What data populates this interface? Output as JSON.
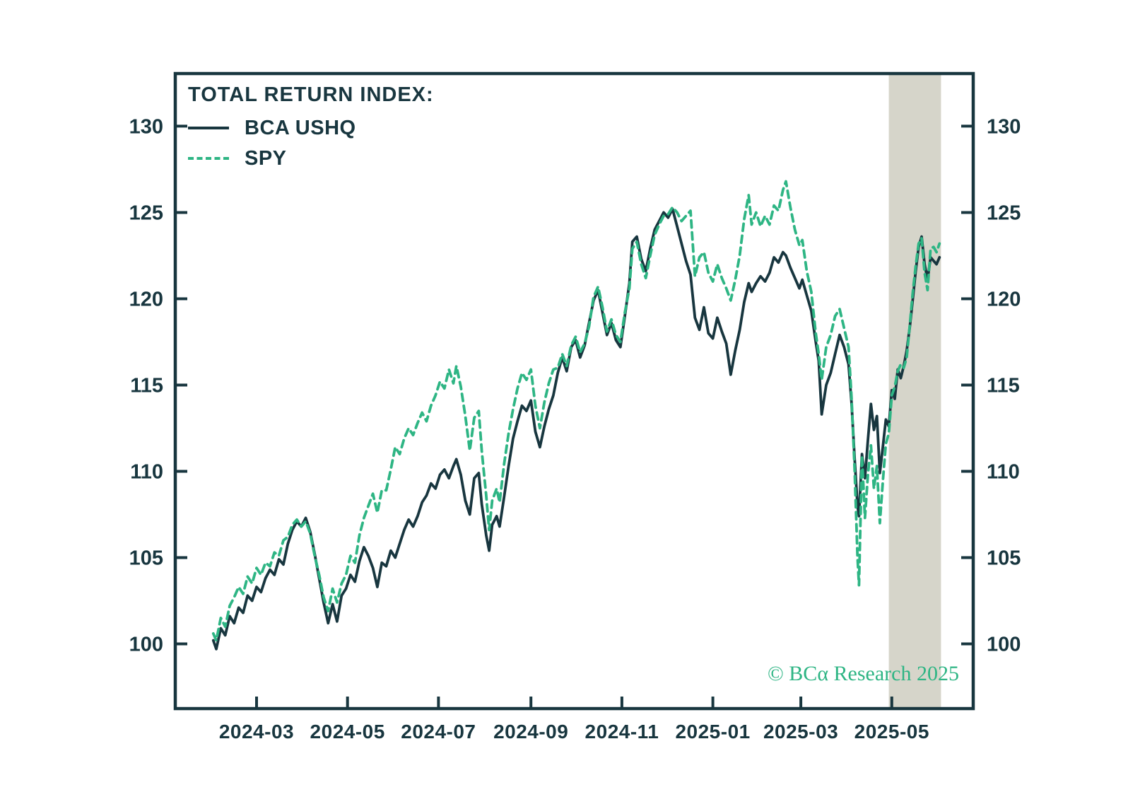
{
  "figure": {
    "copyright": "© BCα Research 2025"
  },
  "colors": {
    "dark": "#18363F",
    "green": "#2EB584",
    "band": "#D6D5CA",
    "background": "#FFFFFF"
  },
  "chart_data": {
    "type": "line",
    "title": "TOTAL RETURN INDEX:",
    "grid": false,
    "legend_position": "top-left",
    "x_axis": {
      "unit": "days since 2024-02-01",
      "tick_labels": [
        "2024-03",
        "2024-05",
        "2024-07",
        "2024-09",
        "2024-11",
        "2025-01",
        "2025-03",
        "2025-05"
      ],
      "tick_days": [
        29,
        90,
        151,
        213,
        274,
        335,
        394,
        455
      ]
    },
    "y_axis": {
      "ticks": [
        100,
        105,
        110,
        115,
        120,
        125,
        130
      ],
      "sides": "both",
      "value_at_top_border": 133.05,
      "value_at_bottom_border": 96.25
    },
    "highlight_band_days": [
      453,
      488
    ],
    "x_days": [
      0,
      2,
      5,
      8,
      11,
      14,
      17,
      20,
      23,
      26,
      29,
      32,
      35,
      38,
      41,
      44,
      47,
      50,
      53,
      56,
      59,
      62,
      65,
      68,
      71,
      74,
      77,
      80,
      83,
      86,
      89,
      92,
      95,
      98,
      101,
      104,
      107,
      110,
      113,
      116,
      119,
      122,
      125,
      128,
      131,
      134,
      137,
      140,
      143,
      146,
      149,
      152,
      155,
      158,
      161,
      163,
      166,
      169,
      172,
      175,
      178,
      180,
      183,
      185,
      187,
      190,
      192,
      195,
      198,
      201,
      204,
      207,
      210,
      213,
      216,
      219,
      222,
      225,
      228,
      231,
      234,
      237,
      240,
      243,
      246,
      249,
      252,
      255,
      258,
      261,
      264,
      267,
      270,
      273,
      276,
      279,
      281,
      284,
      287,
      290,
      293,
      296,
      299,
      302,
      305,
      308,
      311,
      314,
      317,
      320,
      323,
      326,
      329,
      332,
      335,
      338,
      341,
      344,
      347,
      350,
      353,
      356,
      359,
      361,
      364,
      367,
      370,
      373,
      376,
      379,
      382,
      384,
      387,
      390,
      393,
      395,
      398,
      401,
      404,
      406,
      408,
      411,
      414,
      417,
      420,
      423,
      426,
      428,
      430,
      432,
      433,
      435,
      437,
      439,
      441,
      443,
      445,
      447,
      449,
      451,
      453,
      455,
      457,
      459,
      461,
      463,
      465,
      467,
      469,
      471,
      473,
      475,
      477,
      479,
      481,
      483,
      485,
      487
    ],
    "series": [
      {
        "name": "BCA USHQ",
        "line_style": "solid",
        "color": "#18363F",
        "values": [
          100.2,
          99.7,
          100.9,
          100.5,
          101.6,
          101.2,
          102.1,
          101.8,
          102.8,
          102.5,
          103.3,
          103.0,
          103.8,
          104.3,
          104.0,
          104.9,
          104.6,
          105.8,
          106.6,
          107.1,
          106.8,
          107.3,
          106.5,
          105.2,
          103.8,
          102.4,
          101.2,
          102.3,
          101.3,
          102.8,
          103.2,
          104.0,
          103.6,
          104.8,
          105.6,
          105.1,
          104.4,
          103.3,
          104.7,
          104.5,
          105.4,
          105.0,
          105.8,
          106.6,
          107.2,
          106.8,
          107.4,
          108.2,
          108.6,
          109.3,
          109.0,
          109.8,
          110.1,
          109.6,
          110.3,
          110.7,
          109.8,
          108.3,
          107.5,
          109.6,
          109.9,
          108.1,
          106.3,
          105.4,
          106.9,
          107.4,
          106.8,
          108.5,
          110.3,
          111.9,
          112.9,
          113.8,
          113.5,
          114.1,
          112.3,
          111.4,
          112.6,
          113.6,
          114.4,
          115.7,
          116.6,
          115.8,
          117.2,
          117.6,
          116.6,
          117.3,
          118.6,
          119.9,
          120.5,
          119.2,
          117.9,
          118.6,
          117.6,
          117.2,
          119.0,
          120.9,
          123.3,
          123.6,
          122.3,
          121.6,
          122.9,
          124.0,
          124.5,
          125.0,
          124.7,
          125.2,
          124.2,
          123.2,
          122.2,
          121.4,
          118.9,
          118.2,
          119.5,
          118.0,
          117.7,
          118.9,
          118.1,
          117.4,
          115.6,
          117.0,
          118.2,
          119.8,
          120.9,
          120.4,
          120.9,
          121.3,
          121.0,
          121.5,
          122.4,
          122.1,
          122.7,
          122.5,
          121.8,
          121.2,
          120.6,
          121.1,
          120.2,
          119.3,
          117.5,
          116.4,
          113.3,
          115.0,
          115.7,
          116.8,
          117.9,
          117.2,
          116.2,
          114.0,
          110.8,
          108.0,
          107.4,
          111.0,
          109.6,
          111.8,
          113.9,
          112.4,
          113.2,
          109.9,
          111.4,
          113.0,
          112.6,
          114.7,
          114.2,
          115.9,
          115.4,
          116.1,
          117.0,
          118.3,
          119.9,
          121.6,
          123.0,
          123.6,
          122.0,
          121.1,
          122.4,
          122.2,
          122.0,
          122.4
        ]
      },
      {
        "name": "SPY",
        "line_style": "dashed",
        "color": "#2EB584",
        "values": [
          100.6,
          100.2,
          101.5,
          101.0,
          102.2,
          102.7,
          103.3,
          102.9,
          103.9,
          103.5,
          104.4,
          104.0,
          104.7,
          104.5,
          105.3,
          105.1,
          106.0,
          106.2,
          106.9,
          107.2,
          106.8,
          107.1,
          106.4,
          105.1,
          104.0,
          102.7,
          101.9,
          103.2,
          102.4,
          103.5,
          104.0,
          105.1,
          104.7,
          106.3,
          107.3,
          108.0,
          108.7,
          107.6,
          108.9,
          108.9,
          110.1,
          111.4,
          111.0,
          111.9,
          112.5,
          112.1,
          112.8,
          113.4,
          112.9,
          113.8,
          114.4,
          115.2,
          114.8,
          115.9,
          115.1,
          116.1,
          114.9,
          113.2,
          111.2,
          113.1,
          113.5,
          111.2,
          108.6,
          106.6,
          108.3,
          109.0,
          108.2,
          110.4,
          112.2,
          113.6,
          114.8,
          115.7,
          115.3,
          115.9,
          113.8,
          112.5,
          114.0,
          115.1,
          115.9,
          116.0,
          116.8,
          116.1,
          117.3,
          117.8,
          116.9,
          117.4,
          118.4,
          120.1,
          120.7,
          119.5,
          118.1,
          118.8,
          117.9,
          117.5,
          119.2,
          120.6,
          122.9,
          123.3,
          122.0,
          121.2,
          122.5,
          123.7,
          124.3,
          124.8,
          124.9,
          125.3,
          125.0,
          124.5,
          124.8,
          125.1,
          121.3,
          122.4,
          122.7,
          121.5,
          121.0,
          122.0,
          121.2,
          120.6,
          119.9,
          121.1,
          122.5,
          124.6,
          126.0,
          124.3,
          125.0,
          124.2,
          124.8,
          124.3,
          125.4,
          125.1,
          126.3,
          126.8,
          125.3,
          124.0,
          123.1,
          123.4,
          121.6,
          120.4,
          118.0,
          116.8,
          115.3,
          117.2,
          117.9,
          119.0,
          119.4,
          118.3,
          117.2,
          114.3,
          110.2,
          105.0,
          103.4,
          110.9,
          107.3,
          109.8,
          111.5,
          109.0,
          110.3,
          107.0,
          109.4,
          111.6,
          112.2,
          114.4,
          114.9,
          115.8,
          116.2,
          116.0,
          116.6,
          118.4,
          120.3,
          121.9,
          123.2,
          123.5,
          121.5,
          120.5,
          122.9,
          123.0,
          122.7,
          123.2
        ]
      }
    ]
  }
}
